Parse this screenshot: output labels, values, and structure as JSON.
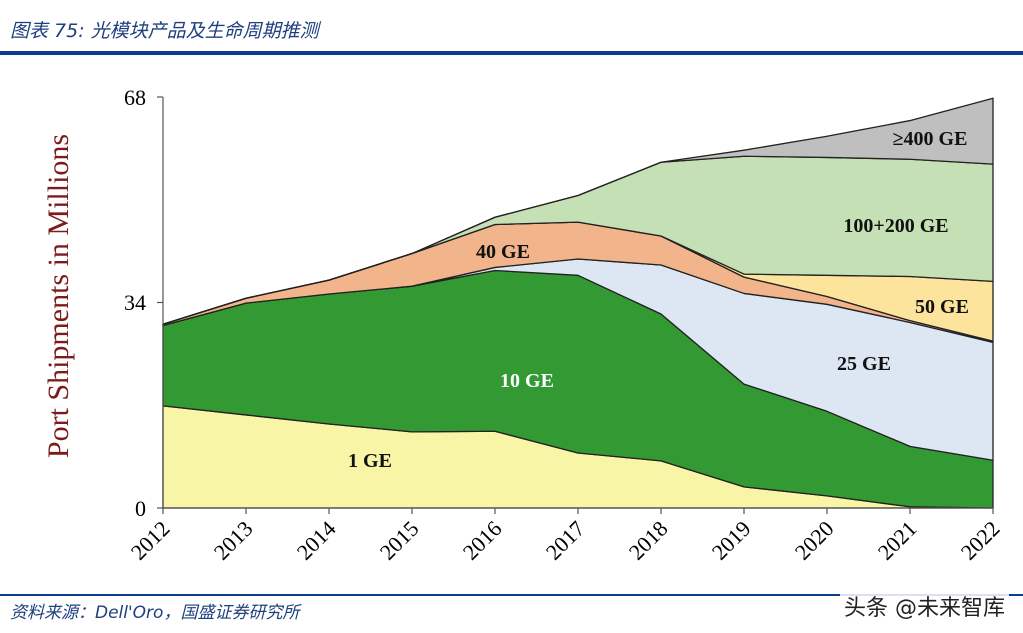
{
  "header": {
    "title": "图表 75:  光模块产品及生命周期推测"
  },
  "footer": {
    "source": "资料来源：Dell'Oro，国盛证券研究所",
    "watermark": "头条 @未来智库"
  },
  "chart_data": {
    "type": "area",
    "stacked": true,
    "title": "",
    "xlabel": "",
    "ylabel": "Port Shipments in Millions",
    "ylim": [
      0,
      68
    ],
    "yticks": [
      "0",
      "34",
      "68"
    ],
    "categories": [
      "2012",
      "2013",
      "2014",
      "2015",
      "2016",
      "2017",
      "2018",
      "2019",
      "2020",
      "2021",
      "2022"
    ],
    "grid": false,
    "series": [
      {
        "name": "1 GE",
        "color": "#f8f5a6",
        "values": [
          16.9,
          15.4,
          13.9,
          12.6,
          12.7,
          9.1,
          7.8,
          3.5,
          2.0,
          0.2,
          0
        ]
      },
      {
        "name": "10 GE",
        "color": "#339933",
        "values": [
          13.3,
          18.5,
          21.5,
          24.1,
          26.6,
          29.4,
          24.3,
          17.0,
          14.0,
          10.0,
          7.9
        ]
      },
      {
        "name": "25 GE",
        "color": "#dde7f3",
        "values": [
          0,
          0,
          0,
          0,
          0.5,
          2.7,
          8.1,
          15.0,
          17.7,
          20.5,
          19.5
        ]
      },
      {
        "name": "40 GE",
        "color": "#f2b48a",
        "values": [
          0.2,
          0.8,
          2.3,
          5.4,
          7.1,
          6.1,
          4.8,
          2.7,
          1.3,
          0.3,
          0.2
        ]
      },
      {
        "name": "50 GE",
        "color": "#fde49c",
        "values": [
          0,
          0,
          0,
          0,
          0,
          0,
          0,
          0.5,
          3.5,
          7.3,
          9.9
        ]
      },
      {
        "name": "100+200 GE",
        "color": "#c5e0b4",
        "values": [
          0,
          0,
          0,
          0,
          1.2,
          4.4,
          12.2,
          19.5,
          19.5,
          19.4,
          19.4
        ]
      },
      {
        "name": "≥400 GE",
        "color": "#bfbfbf",
        "values": [
          0,
          0,
          0,
          0,
          0,
          0,
          0,
          1.0,
          3.5,
          6.4,
          10.9
        ]
      }
    ]
  }
}
